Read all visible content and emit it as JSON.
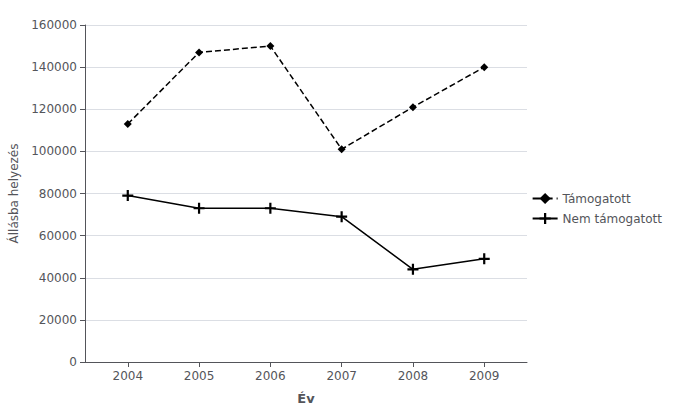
{
  "chart_data": {
    "type": "line",
    "x": [
      2004,
      2005,
      2006,
      2007,
      2008,
      2009
    ],
    "xlabel": "Év",
    "ylabel": "Állásba helyezés",
    "xlim": [
      2003.4,
      2009.6
    ],
    "xticks": [
      2004,
      2005,
      2006,
      2007,
      2008,
      2009
    ],
    "ylim": [
      0,
      160000
    ],
    "yticks": [
      0,
      20000,
      40000,
      60000,
      80000,
      100000,
      120000,
      140000,
      160000
    ],
    "grid": true,
    "legend": "right",
    "series": [
      {
        "name": "Támogatott",
        "color": "#000000",
        "values": [
          113000,
          147000,
          150000,
          101000,
          121000,
          140000
        ],
        "line_style": "dashed",
        "marker": "diamond"
      },
      {
        "name": "Nem támogatott",
        "color": "#000000",
        "values": [
          79000,
          73000,
          73000,
          69000,
          44000,
          49000
        ],
        "line_style": "solid",
        "marker": "plus"
      }
    ]
  }
}
